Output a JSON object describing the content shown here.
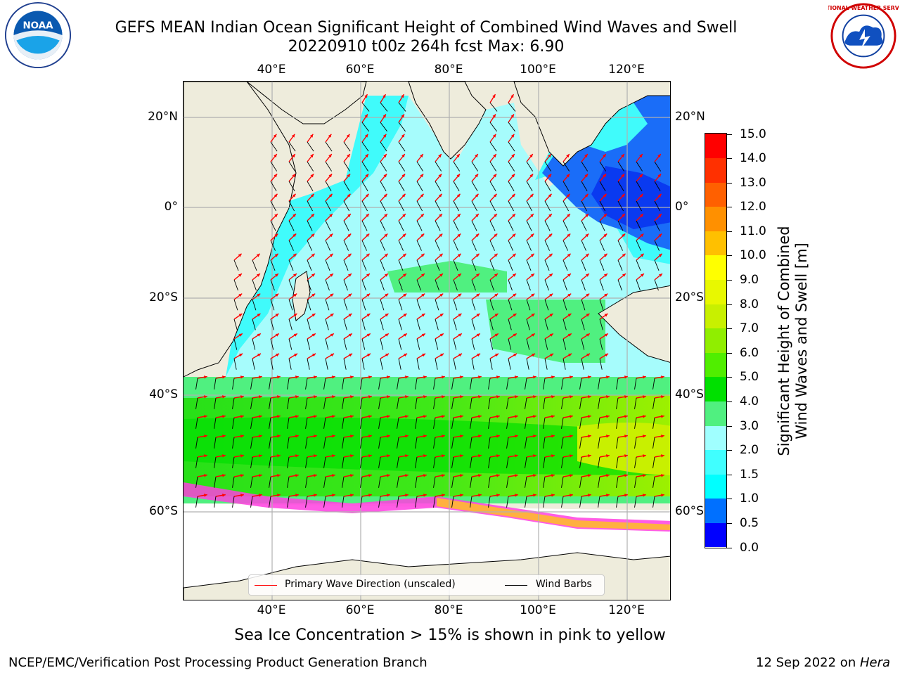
{
  "header": {
    "title_line1": "GEFS MEAN Indian Ocean Significant Height of Combined Wind Waves and Swell",
    "title_line2": "20220910 t00z 264h fcst   Max: 6.90"
  },
  "logos": {
    "left": {
      "icon": "noaa-logo-icon",
      "text": "NOAA"
    },
    "right": {
      "icon": "nws-logo-icon",
      "text": "NATIONAL WEATHER SERVICE"
    }
  },
  "map": {
    "lon_ticks_top": [
      "40°E",
      "60°E",
      "80°E",
      "100°E",
      "120°E"
    ],
    "lon_ticks_bottom": [
      "40°E",
      "60°E",
      "80°E",
      "100°E",
      "120°E"
    ],
    "lat_ticks_left": [
      "20°N",
      "0°",
      "20°S",
      "40°S",
      "60°S"
    ],
    "lat_ticks_right": [
      "20°N",
      "0°",
      "20°S",
      "40°S",
      "60°S"
    ],
    "lon_range": [
      20,
      130
    ],
    "lat_range": [
      -75,
      28
    ],
    "colors": {
      "land": "#eeecdc",
      "antarctic_ocean": "#ffffff",
      "coastline": "#000000",
      "gridlines": "#b0b0b0",
      "wave_arrows": "#ff0000",
      "wind_barbs": "#000000"
    }
  },
  "legend": {
    "entries": [
      {
        "label": "Primary Wave Direction (unscaled)",
        "color": "#ff0000"
      },
      {
        "label": "Wind Barbs",
        "color": "#000000"
      }
    ]
  },
  "colorbar": {
    "title": "Significant Height of Combined Wind Waves and Swell [m]",
    "title_line1": "Significant Height of Combined",
    "title_line2": "Wind Waves and Swell [m]",
    "tick_labels": [
      "0.0",
      "0.5",
      "1.0",
      "1.5",
      "2.0",
      "3.0",
      "4.0",
      "5.0",
      "6.0",
      "7.0",
      "8.0",
      "9.0",
      "10.0",
      "11.0",
      "12.0",
      "13.0",
      "14.0",
      "15.0"
    ],
    "colors": [
      "#0000ff",
      "#0070ff",
      "#00ffff",
      "#40ffff",
      "#a0ffff",
      "#50f080",
      "#00e000",
      "#50ee00",
      "#90ee00",
      "#c8f000",
      "#e8f800",
      "#ffff00",
      "#ffc000",
      "#ff9000",
      "#ff6000",
      "#ff3000",
      "#ff0000"
    ]
  },
  "footer": {
    "sea_ice_note": "Sea Ice Concentration > 15% is shown in pink to yellow",
    "branch": "NCEP/EMC/Verification Post Processing Product Generation Branch",
    "date": "12 Sep 2022 on ",
    "machine": "Hera"
  }
}
